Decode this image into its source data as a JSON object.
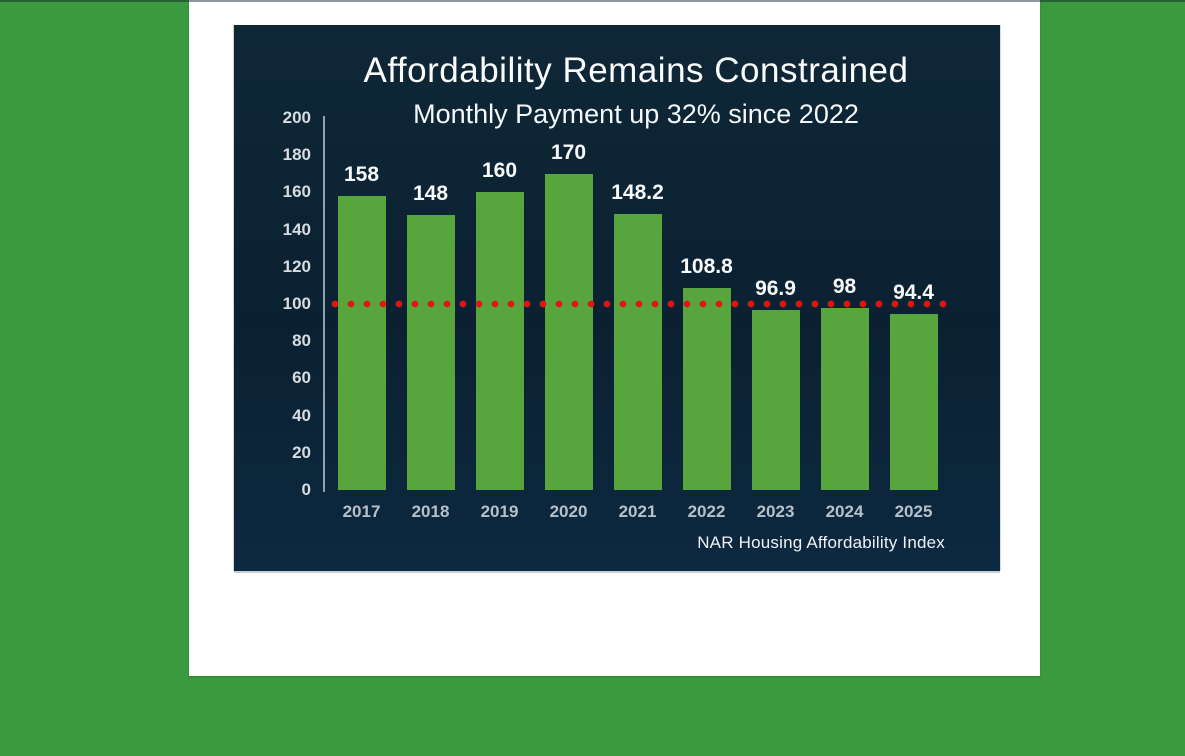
{
  "page": {
    "background_color": "#3b9a3f",
    "panel_color": "#ffffff"
  },
  "chart_data": {
    "type": "bar",
    "title": "Affordability Remains Constrained",
    "subtitle": "Monthly Payment up 32% since 2022",
    "source_label": "NAR Housing Affordability Index",
    "categories": [
      "2017",
      "2018",
      "2019",
      "2020",
      "2021",
      "2022",
      "2023",
      "2024",
      "2025"
    ],
    "values": [
      158,
      148,
      160,
      170,
      148.2,
      108.8,
      96.9,
      98,
      94.4
    ],
    "value_labels": [
      "158",
      "148",
      "160",
      "170",
      "148.2",
      "108.8",
      "96.9",
      "98",
      "94.4"
    ],
    "y_ticks": [
      0,
      20,
      40,
      60,
      80,
      100,
      120,
      140,
      160,
      180,
      200
    ],
    "ylim": [
      0,
      200
    ],
    "xlabel": "",
    "ylabel": "",
    "grid": false,
    "legend": null,
    "reference_line": {
      "value": 100,
      "style": "dotted",
      "color": "#e41414"
    },
    "bar_color": "#58a53d",
    "background_color": "#0b2132",
    "title_color": "#fbfcfd",
    "tick_label_color": "#d7dce1",
    "category_label_color": "#b6c0c9",
    "value_label_color": "#f8fafb"
  }
}
